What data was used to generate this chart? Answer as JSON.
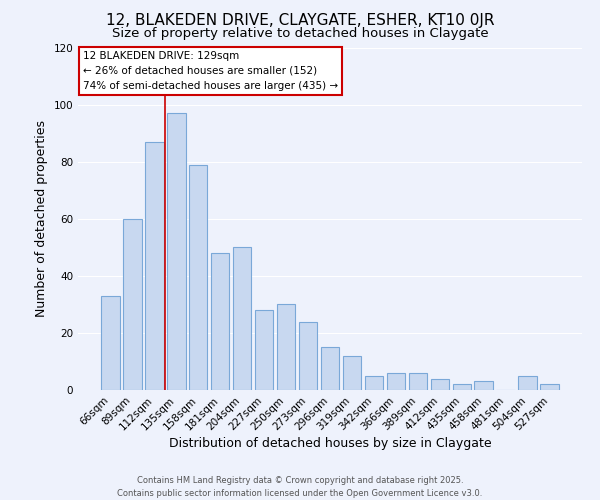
{
  "title": "12, BLAKEDEN DRIVE, CLAYGATE, ESHER, KT10 0JR",
  "subtitle": "Size of property relative to detached houses in Claygate",
  "xlabel": "Distribution of detached houses by size in Claygate",
  "ylabel": "Number of detached properties",
  "bar_color": "#c8d8f0",
  "bar_edge_color": "#7aa8d8",
  "background_color": "#eef2fc",
  "grid_color": "#ffffff",
  "categories": [
    "66sqm",
    "89sqm",
    "112sqm",
    "135sqm",
    "158sqm",
    "181sqm",
    "204sqm",
    "227sqm",
    "250sqm",
    "273sqm",
    "296sqm",
    "319sqm",
    "342sqm",
    "366sqm",
    "389sqm",
    "412sqm",
    "435sqm",
    "458sqm",
    "481sqm",
    "504sqm",
    "527sqm"
  ],
  "values": [
    33,
    60,
    87,
    97,
    79,
    48,
    50,
    28,
    30,
    24,
    15,
    12,
    5,
    6,
    6,
    4,
    2,
    3,
    0,
    5,
    2
  ],
  "ylim": [
    0,
    120
  ],
  "yticks": [
    0,
    20,
    40,
    60,
    80,
    100,
    120
  ],
  "vline_index": 2.5,
  "vline_color": "#cc0000",
  "annotation_box_text": "12 BLAKEDEN DRIVE: 129sqm\n← 26% of detached houses are smaller (152)\n74% of semi-detached houses are larger (435) →",
  "footer_line1": "Contains HM Land Registry data © Crown copyright and database right 2025.",
  "footer_line2": "Contains public sector information licensed under the Open Government Licence v3.0.",
  "title_fontsize": 11,
  "subtitle_fontsize": 9.5,
  "tick_fontsize": 7.5,
  "axis_label_fontsize": 9,
  "footer_fontsize": 6,
  "annotation_fontsize": 7.5
}
